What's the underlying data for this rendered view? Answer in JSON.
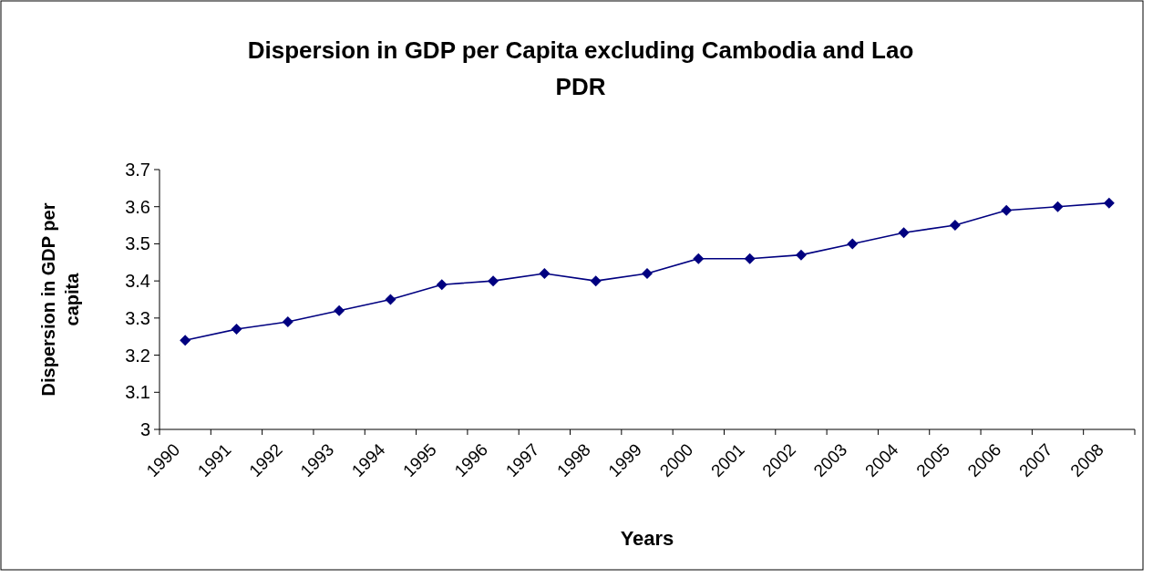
{
  "chart_data": {
    "type": "line",
    "title": "Dispersion in GDP per Capita excluding Cambodia and Lao PDR",
    "xlabel": "Years",
    "ylabel": "Dispersion in GDP per capita",
    "categories": [
      "1990",
      "1991",
      "1992",
      "1993",
      "1994",
      "1995",
      "1996",
      "1997",
      "1998",
      "1999",
      "2000",
      "2001",
      "2002",
      "2003",
      "2004",
      "2005",
      "2006",
      "2007",
      "2008"
    ],
    "series": [
      {
        "color": "#000080",
        "values": [
          3.24,
          3.27,
          3.29,
          3.32,
          3.35,
          3.39,
          3.4,
          3.42,
          3.4,
          3.42,
          3.46,
          3.46,
          3.47,
          3.5,
          3.53,
          3.55,
          3.59,
          3.6,
          3.61
        ]
      }
    ],
    "ylim": [
      3,
      3.7
    ],
    "yticks": [
      3,
      3.1,
      3.2,
      3.3,
      3.4,
      3.5,
      3.6,
      3.7
    ],
    "marker": "diamond",
    "grid": false
  }
}
